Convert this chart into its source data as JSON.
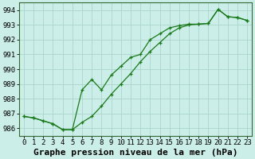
{
  "title": "Graphe pression niveau de la mer (hPa)",
  "hours": [
    0,
    1,
    2,
    3,
    4,
    5,
    6,
    7,
    8,
    9,
    10,
    11,
    12,
    13,
    14,
    15,
    16,
    17,
    18,
    19,
    20,
    21,
    22,
    23
  ],
  "upper": [
    986.8,
    986.7,
    986.5,
    986.3,
    985.9,
    985.9,
    988.6,
    989.3,
    988.6,
    989.6,
    990.2,
    990.8,
    991.0,
    992.0,
    992.4,
    992.8,
    992.95,
    993.05,
    993.05,
    993.1,
    994.05,
    993.55,
    993.5,
    993.3
  ],
  "lower": [
    986.8,
    986.7,
    986.5,
    986.3,
    985.9,
    985.9,
    986.4,
    986.8,
    987.5,
    988.3,
    989.0,
    989.7,
    990.5,
    991.2,
    991.8,
    992.4,
    992.8,
    993.0,
    993.05,
    993.1,
    994.05,
    993.55,
    993.5,
    993.3
  ],
  "ylim": [
    985.5,
    994.5
  ],
  "yticks": [
    986,
    987,
    988,
    989,
    990,
    991,
    992,
    993,
    994
  ],
  "line_color": "#1a7a1a",
  "background_color": "#cceee8",
  "grid_color": "#aad4cc",
  "title_fontsize": 8.0,
  "tick_fontsize": 6.5
}
